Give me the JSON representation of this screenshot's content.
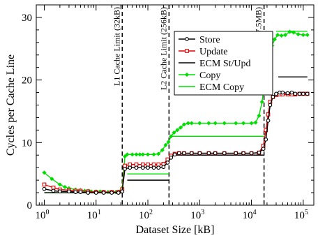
{
  "chart_data": {
    "type": "line",
    "xlabel": "Dataset Size [kB]",
    "ylabel": "Cycles per Cache Line",
    "x_scale": "log",
    "xlim": [
      0.7,
      160000
    ],
    "ylim": [
      0,
      32
    ],
    "x_ticks": [
      {
        "value": 1,
        "base": "10",
        "exp": "0"
      },
      {
        "value": 10,
        "base": "10",
        "exp": "1"
      },
      {
        "value": 100,
        "base": "10",
        "exp": "2"
      },
      {
        "value": 1000,
        "base": "10",
        "exp": "3"
      },
      {
        "value": 10000,
        "base": "10",
        "exp": "4"
      },
      {
        "value": 100000,
        "base": "10",
        "exp": "5"
      }
    ],
    "y_ticks": [
      "0",
      "10",
      "20",
      "30"
    ],
    "y_tick_values": [
      0,
      10,
      20,
      30
    ],
    "grid": false,
    "legend_position": "top-right",
    "series": [
      {
        "name": "Store",
        "color": "#000000",
        "marker": "circle",
        "points": [
          [
            1,
            2.6
          ],
          [
            1.5,
            2.3
          ],
          [
            2,
            2.2
          ],
          [
            3,
            2.2
          ],
          [
            4,
            2.1
          ],
          [
            5,
            2.1
          ],
          [
            7,
            2.0
          ],
          [
            10,
            2.0
          ],
          [
            14,
            2.0
          ],
          [
            20,
            2.0
          ],
          [
            27,
            2.0
          ],
          [
            32,
            2.2
          ],
          [
            36,
            5.8
          ],
          [
            45,
            6.0
          ],
          [
            60,
            6.0
          ],
          [
            80,
            6.0
          ],
          [
            100,
            6.0
          ],
          [
            130,
            6.0
          ],
          [
            160,
            6.0
          ],
          [
            200,
            6.1
          ],
          [
            240,
            6.8
          ],
          [
            280,
            7.6
          ],
          [
            330,
            8.1
          ],
          [
            400,
            8.3
          ],
          [
            500,
            8.3
          ],
          [
            700,
            8.3
          ],
          [
            1000,
            8.3
          ],
          [
            1500,
            8.3
          ],
          [
            2000,
            8.3
          ],
          [
            3000,
            8.3
          ],
          [
            5000,
            8.3
          ],
          [
            7000,
            8.3
          ],
          [
            10000,
            8.3
          ],
          [
            14000,
            8.4
          ],
          [
            17000,
            9.0
          ],
          [
            19000,
            10.5
          ],
          [
            21000,
            13.5
          ],
          [
            23000,
            16.0
          ],
          [
            26000,
            17.3
          ],
          [
            30000,
            17.8
          ],
          [
            35000,
            18.0
          ],
          [
            40000,
            18.0
          ],
          [
            50000,
            17.9
          ],
          [
            60000,
            18.0
          ],
          [
            70000,
            17.8
          ],
          [
            85000,
            17.8
          ],
          [
            100000,
            17.8
          ],
          [
            120000,
            17.8
          ]
        ]
      },
      {
        "name": "Update",
        "color": "#e00000",
        "marker": "square",
        "points": [
          [
            1,
            3.3
          ],
          [
            1.5,
            2.8
          ],
          [
            2,
            2.5
          ],
          [
            3,
            2.4
          ],
          [
            4,
            2.3
          ],
          [
            5,
            2.3
          ],
          [
            7,
            2.2
          ],
          [
            10,
            2.1
          ],
          [
            14,
            2.1
          ],
          [
            20,
            2.1
          ],
          [
            27,
            2.1
          ],
          [
            32,
            2.5
          ],
          [
            36,
            6.3
          ],
          [
            45,
            6.5
          ],
          [
            60,
            6.5
          ],
          [
            80,
            6.5
          ],
          [
            100,
            6.5
          ],
          [
            130,
            6.5
          ],
          [
            160,
            6.5
          ],
          [
            200,
            6.6
          ],
          [
            240,
            7.3
          ],
          [
            280,
            7.9
          ],
          [
            330,
            8.2
          ],
          [
            400,
            8.3
          ],
          [
            500,
            8.3
          ],
          [
            700,
            8.3
          ],
          [
            1000,
            8.3
          ],
          [
            1500,
            8.3
          ],
          [
            2000,
            8.3
          ],
          [
            3000,
            8.3
          ],
          [
            5000,
            8.3
          ],
          [
            7000,
            8.3
          ],
          [
            10000,
            8.3
          ],
          [
            14000,
            8.4
          ],
          [
            17000,
            9.5
          ],
          [
            19000,
            12.0
          ],
          [
            21000,
            14.5
          ],
          [
            23000,
            16.5
          ],
          [
            26000,
            17.3
          ],
          [
            30000,
            17.6
          ],
          [
            35000,
            17.7
          ],
          [
            40000,
            17.7
          ],
          [
            50000,
            17.7
          ],
          [
            60000,
            17.7
          ],
          [
            70000,
            17.7
          ],
          [
            85000,
            17.8
          ],
          [
            100000,
            17.8
          ],
          [
            120000,
            17.8
          ]
        ]
      },
      {
        "name": "ECM St/Upd",
        "color": "#000000",
        "marker": "none",
        "segments": [
          {
            "x": [
              1,
              32
            ],
            "y": 2.0
          },
          {
            "x": [
              40,
              256
            ],
            "y": 4.0
          },
          {
            "x": [
              280,
              17500
            ],
            "y": 8.0
          },
          {
            "x": [
              33000,
              120000
            ],
            "y": 20.5
          }
        ]
      },
      {
        "name": "Copy",
        "color": "#00dd00",
        "marker": "diamond",
        "points": [
          [
            1,
            5.2
          ],
          [
            1.4,
            4.2
          ],
          [
            2,
            3.3
          ],
          [
            2.5,
            2.9
          ],
          [
            3,
            2.7
          ],
          [
            4,
            2.5
          ],
          [
            5,
            2.4
          ],
          [
            6,
            2.3
          ],
          [
            7,
            2.3
          ],
          [
            8,
            2.2
          ],
          [
            10,
            2.2
          ],
          [
            12,
            2.2
          ],
          [
            14,
            2.1
          ],
          [
            17,
            2.1
          ],
          [
            20,
            2.1
          ],
          [
            24,
            2.1
          ],
          [
            28,
            2.2
          ],
          [
            32,
            2.8
          ],
          [
            36,
            7.8
          ],
          [
            40,
            8.1
          ],
          [
            50,
            8.1
          ],
          [
            60,
            8.1
          ],
          [
            70,
            8.1
          ],
          [
            80,
            8.1
          ],
          [
            100,
            8.1
          ],
          [
            130,
            8.1
          ],
          [
            160,
            8.2
          ],
          [
            190,
            8.8
          ],
          [
            220,
            9.6
          ],
          [
            250,
            10.1
          ],
          [
            280,
            11.0
          ],
          [
            320,
            11.6
          ],
          [
            370,
            12.0
          ],
          [
            430,
            12.4
          ],
          [
            500,
            12.9
          ],
          [
            600,
            13.1
          ],
          [
            700,
            13.1
          ],
          [
            1000,
            13.1
          ],
          [
            1500,
            13.1
          ],
          [
            2000,
            13.1
          ],
          [
            3000,
            13.1
          ],
          [
            5000,
            13.1
          ],
          [
            7000,
            13.1
          ],
          [
            10000,
            13.1
          ],
          [
            12000,
            13.2
          ],
          [
            14000,
            14.3
          ],
          [
            16000,
            16.5
          ],
          [
            18000,
            19.5
          ],
          [
            20000,
            22.0
          ],
          [
            22000,
            24.0
          ],
          [
            25000,
            25.5
          ],
          [
            28000,
            26.5
          ],
          [
            32000,
            27.2
          ],
          [
            38000,
            27.1
          ],
          [
            45000,
            27.2
          ],
          [
            55000,
            27.7
          ],
          [
            65000,
            27.6
          ],
          [
            80000,
            27.3
          ],
          [
            100000,
            27.2
          ],
          [
            120000,
            27.2
          ]
        ]
      },
      {
        "name": "ECM Copy",
        "color": "#00dd00",
        "marker": "none",
        "segments": [
          {
            "x": [
              1,
              32
            ],
            "y": 2.0
          },
          {
            "x": [
              40,
              256
            ],
            "y": 5.0
          },
          {
            "x": [
              280,
              17500
            ],
            "y": 11.0
          },
          {
            "x": [
              30000,
              120000
            ],
            "y": 27.8
          }
        ]
      }
    ],
    "annotations": [
      {
        "x": 32,
        "label": "L1 Cache Limit (32kB)"
      },
      {
        "x": 256,
        "label": "L2 Cache Limit (256kB)"
      },
      {
        "x": 17500,
        "label": "L3 Cache Limit (17.5MB)"
      }
    ]
  }
}
